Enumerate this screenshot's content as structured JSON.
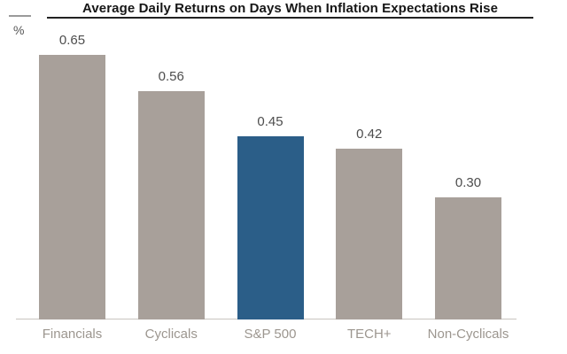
{
  "chart_data": {
    "type": "bar",
    "title": "Average Daily Returns on Days When Inflation Expectations Rise",
    "unit": "%",
    "categories": [
      "Financials",
      "Cyclicals",
      "S&P 500",
      "TECH+",
      "Non-Cyclicals"
    ],
    "values": [
      0.65,
      0.56,
      0.45,
      0.42,
      0.3
    ],
    "value_labels": [
      "0.65",
      "0.56",
      "0.45",
      "0.42",
      "0.30"
    ],
    "highlighted_index": 2,
    "highlighted_category": "S&P 500",
    "bar_color": "#a8a09a",
    "highlight_color": "#2b5e88",
    "value_label_color": "#4d4d4d",
    "category_label_color": "#9c968f",
    "axis_line_color": "#c9c5c0",
    "title_color": "#161616",
    "xlabel": "",
    "ylabel": "",
    "ylim": [
      0,
      0.78
    ],
    "grid": false,
    "legend": false
  }
}
